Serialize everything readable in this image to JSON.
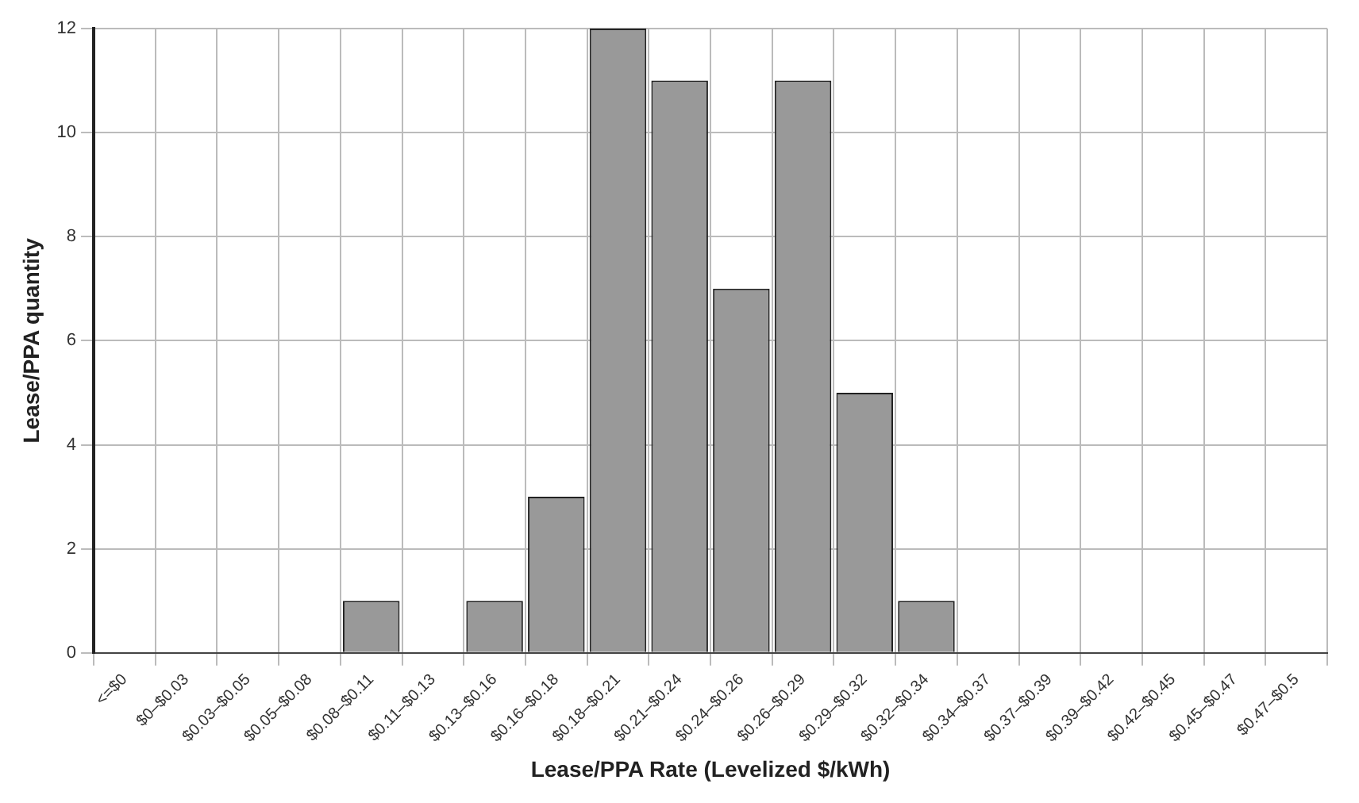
{
  "chart_data": {
    "type": "bar",
    "xlabel": "Lease/PPA Rate (Levelized $/kWh)",
    "ylabel": "Lease/PPA quantity",
    "categories": [
      "<=$0",
      "$0–$0.03",
      "$0.03–$0.05",
      "$0.05–$0.08",
      "$0.08–$0.11",
      "$0.11–$0.13",
      "$0.13–$0.16",
      "$0.16–$0.18",
      "$0.18–$0.21",
      "$0.21–$0.24",
      "$0.24–$0.26",
      "$0.26–$0.29",
      "$0.29–$0.32",
      "$0.32–$0.34",
      "$0.34–$0.37",
      "$0.37–$0.39",
      "$0.39–$0.42",
      "$0.42–$0.45",
      "$0.45–$0.47",
      "$0.47–$0.5"
    ],
    "values": [
      0,
      0,
      0,
      0,
      1,
      0,
      1,
      3,
      12,
      11,
      7,
      11,
      5,
      1,
      0,
      0,
      0,
      0,
      0,
      0
    ],
    "color": "#999999",
    "ylim": [
      0,
      12
    ],
    "yticks": [
      0,
      2,
      4,
      6,
      8,
      10,
      12
    ],
    "grid": true,
    "legend": false
  }
}
